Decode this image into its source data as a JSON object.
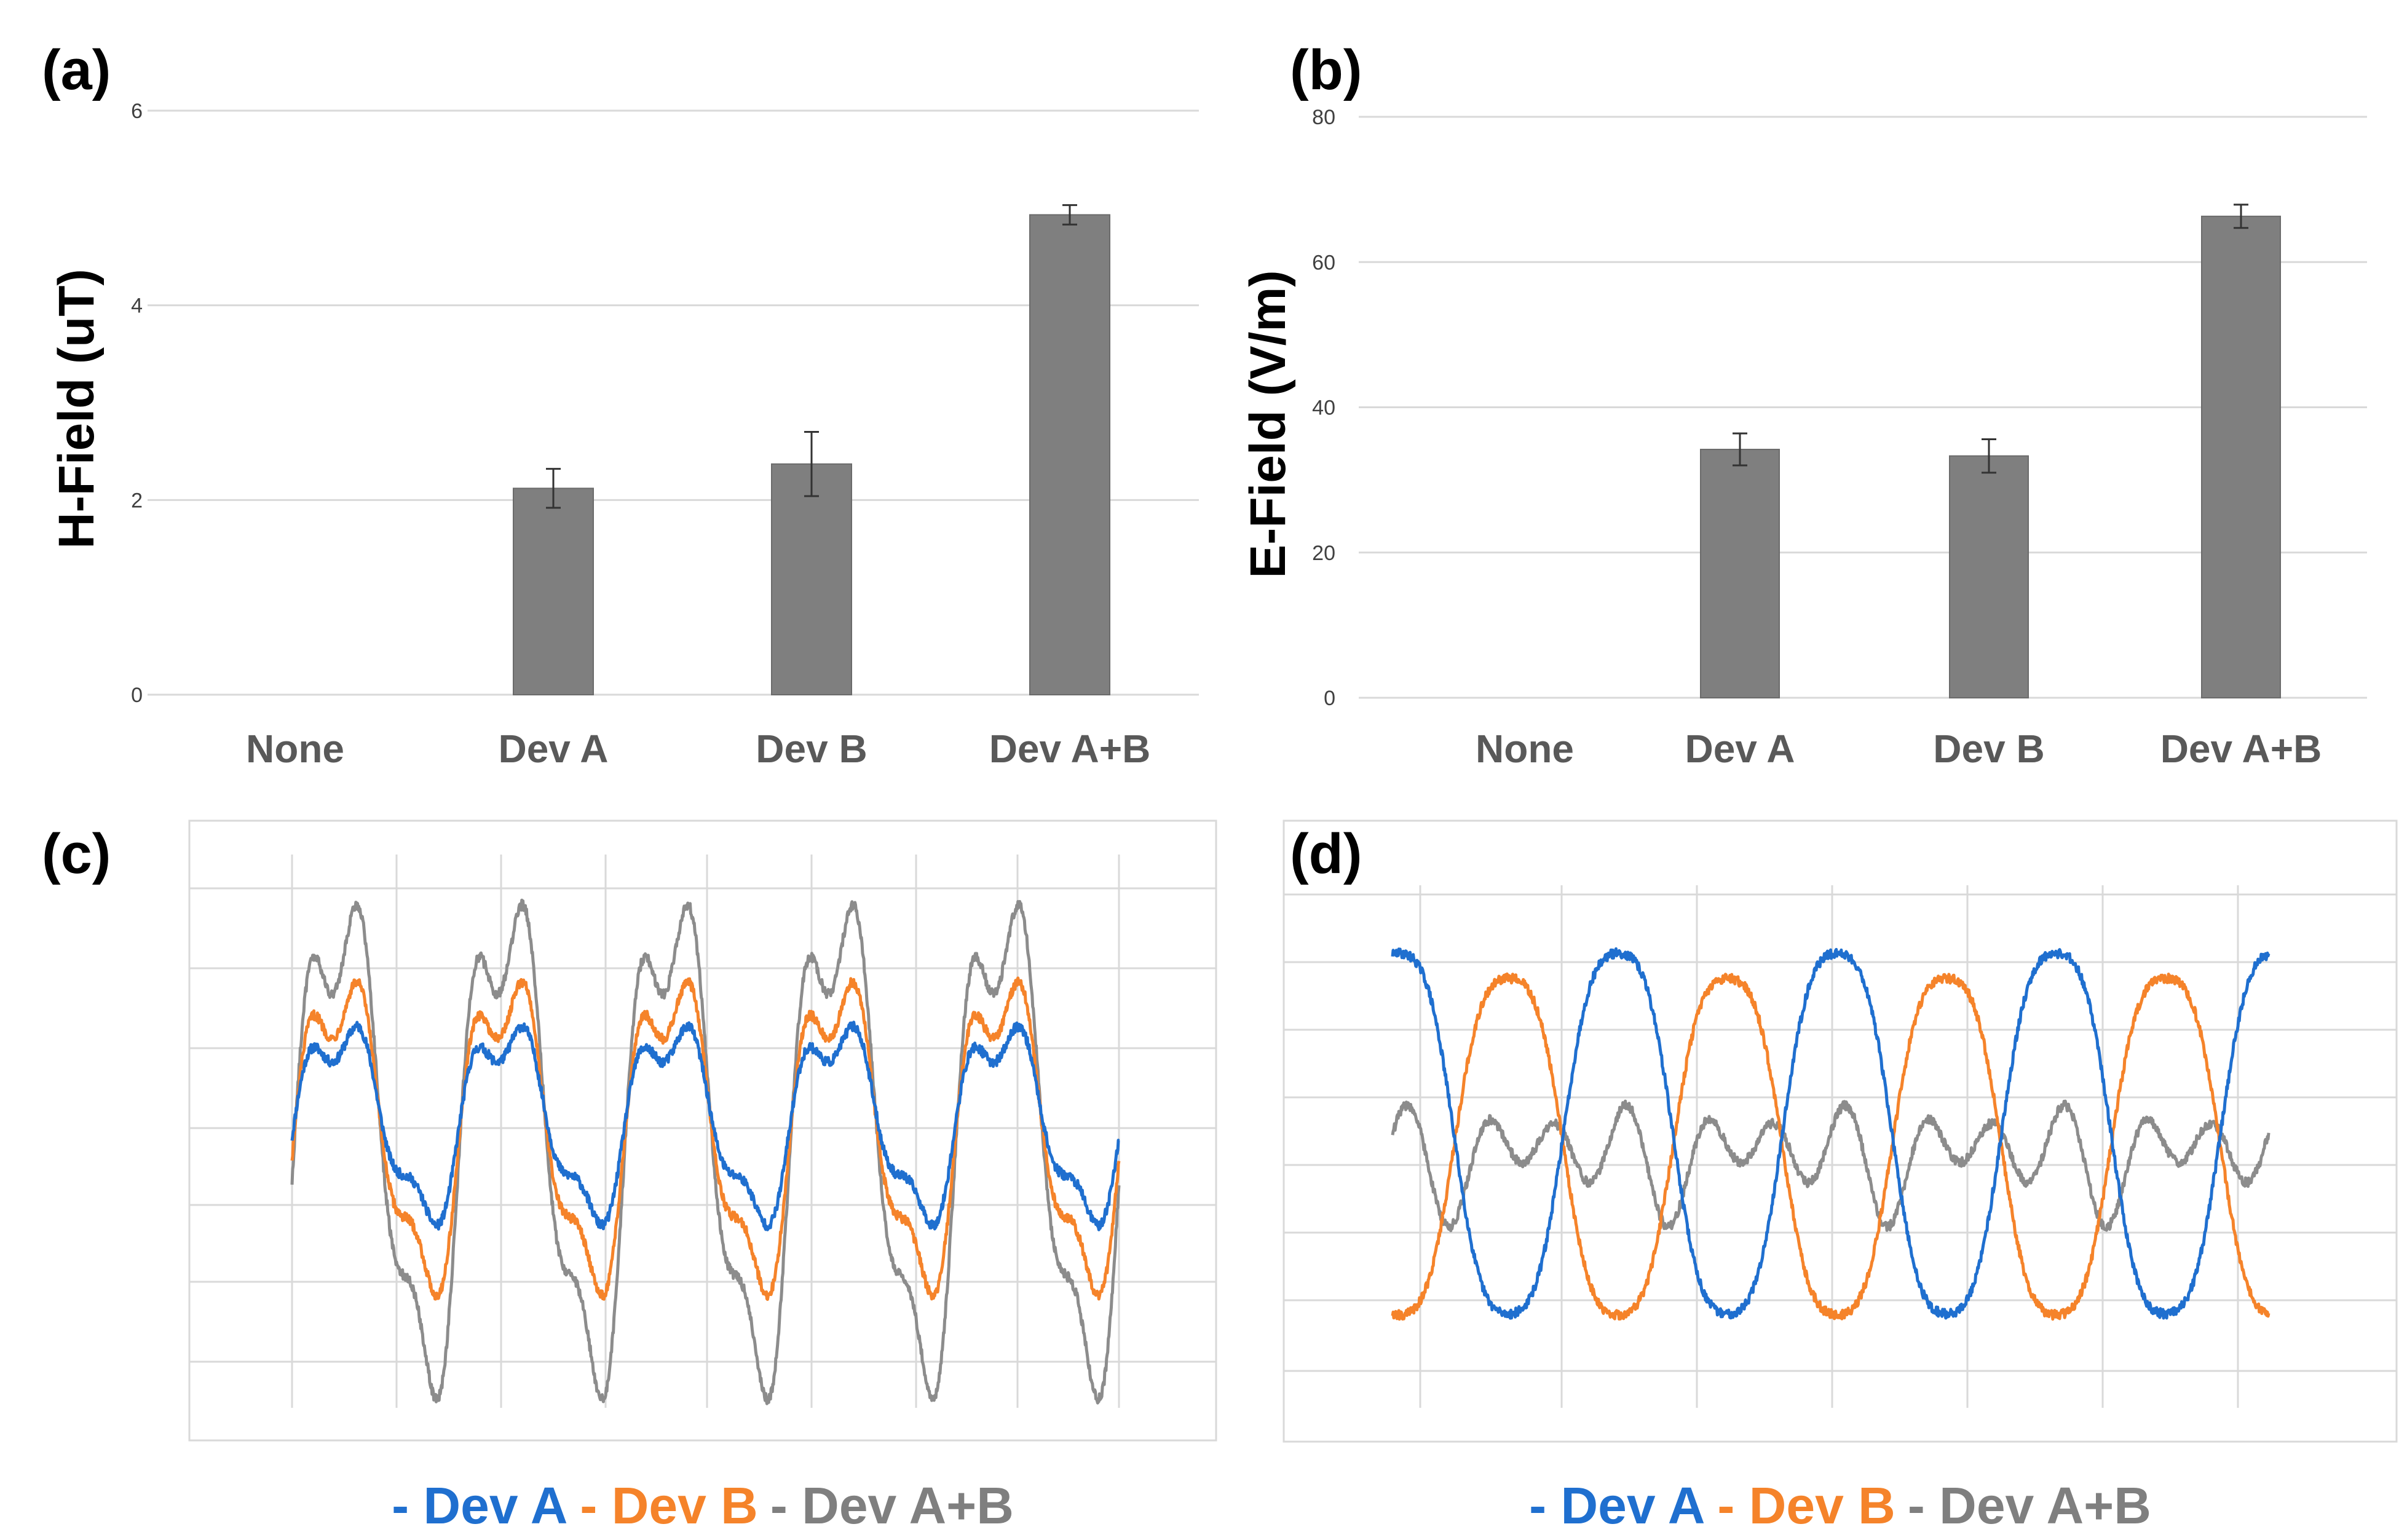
{
  "figure": {
    "panel_labels": [
      "(a)",
      "(b)",
      "(c)",
      "(d)"
    ],
    "colors": {
      "bar": "#7f7f7f",
      "dev_a": "#1f6fcf",
      "dev_b": "#f5832a",
      "dev_ab": "#8c8c8c"
    }
  },
  "chart_data": [
    {
      "panel": "(a)",
      "type": "bar",
      "title": "",
      "xlabel": "",
      "ylabel": "H-Field (uT)",
      "categories": [
        "None",
        "Dev A",
        "Dev B",
        "Dev A+B"
      ],
      "values": [
        0,
        2.12,
        2.37,
        4.93
      ],
      "errors": [
        0,
        0.2,
        0.33,
        0.1
      ],
      "yticks": [
        "0",
        "2",
        "4",
        "6"
      ],
      "ylim": [
        0,
        6
      ],
      "grid": true
    },
    {
      "panel": "(b)",
      "type": "bar",
      "title": "",
      "xlabel": "",
      "ylabel": "E-Field (V/m)",
      "categories": [
        "None",
        "Dev A",
        "Dev B",
        "Dev A+B"
      ],
      "values": [
        0,
        34.2,
        33.3,
        66.3
      ],
      "errors": [
        0,
        2.2,
        2.3,
        1.6
      ],
      "yticks": [
        "0",
        "20",
        "40",
        "60",
        "80"
      ],
      "ylim": [
        0,
        80
      ],
      "grid": true
    },
    {
      "panel": "(c)",
      "type": "line",
      "title": "",
      "xlabel": "",
      "ylabel": "",
      "grid": true,
      "xlim": [
        0,
        5
      ],
      "ylim": [
        -1,
        1
      ],
      "cycles": 5,
      "legend": {
        "placement": "bottom",
        "prefix": "- ",
        "labels": [
          "Dev A",
          "Dev B",
          "Dev A+B"
        ]
      },
      "series": [
        {
          "name": "Dev A",
          "amplitude": 0.33,
          "offset": 0.05,
          "phase": 0
        },
        {
          "name": "Dev B",
          "amplitude": 0.52,
          "offset": 0.02,
          "phase": 0
        },
        {
          "name": "Dev A+B",
          "amplitude": 0.82,
          "offset": 0.0,
          "phase": 0
        }
      ]
    },
    {
      "panel": "(d)",
      "type": "line",
      "title": "",
      "xlabel": "",
      "ylabel": "",
      "grid": true,
      "xlim": [
        0,
        4
      ],
      "ylim": [
        -1,
        1
      ],
      "cycles": 4,
      "legend": {
        "placement": "bottom",
        "prefix": "- ",
        "labels": [
          "Dev A",
          "Dev B",
          "Dev A+B"
        ]
      },
      "series": [
        {
          "name": "Dev A",
          "amplitude": 0.75,
          "offset": 0.05,
          "phase": 0.22
        },
        {
          "name": "Dev B",
          "amplitude": 0.7,
          "offset": 0.0,
          "phase": 0.72
        },
        {
          "name": "Dev A+B",
          "amplitude": 0.15,
          "offset": -0.03,
          "phase": 0.0
        }
      ]
    }
  ]
}
